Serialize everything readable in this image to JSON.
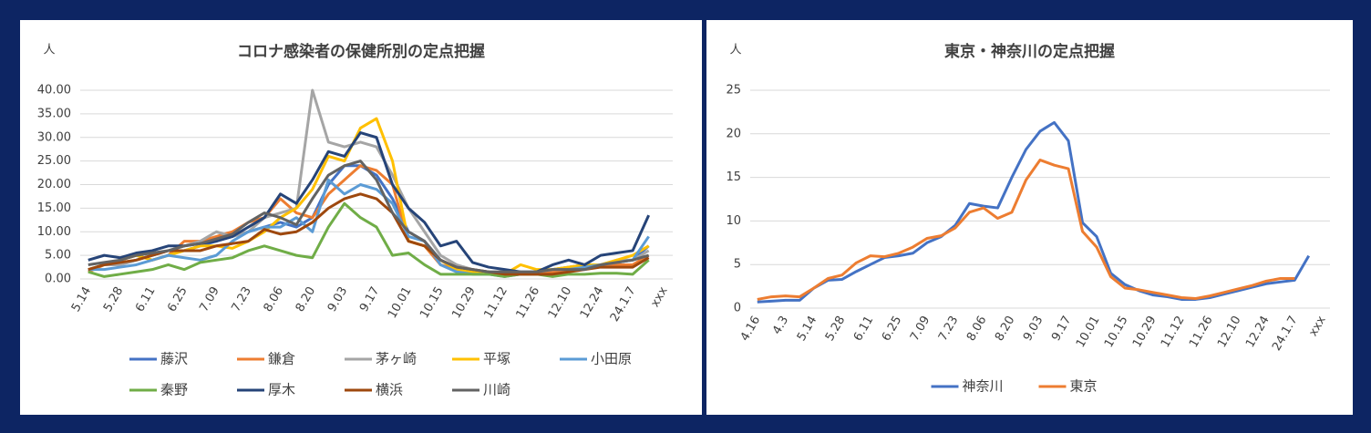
{
  "chart_data": [
    {
      "type": "line",
      "title": "コロナ感染者の保健所別の定点把握",
      "y_label": "人",
      "categories": [
        "5.14",
        null,
        "5.28",
        null,
        "6.11",
        null,
        "6.25",
        null,
        "7.09",
        null,
        "7.23",
        null,
        "8.06",
        null,
        "8.20",
        null,
        "9.03",
        null,
        "9.17",
        null,
        "10.01",
        null,
        "10.15",
        null,
        "10.29",
        null,
        "11.12",
        null,
        "11.26",
        null,
        "12.10",
        null,
        "12.24",
        null,
        "24.1.7",
        null,
        "xxx"
      ],
      "ylim": [
        0,
        40
      ],
      "yticks": [
        {
          "value": 0,
          "label": "0.00"
        },
        {
          "value": 5,
          "label": "5.00"
        },
        {
          "value": 10,
          "label": "10.00"
        },
        {
          "value": 15,
          "label": "15.00"
        },
        {
          "value": 20,
          "label": "20.00"
        },
        {
          "value": 25,
          "label": "25.00"
        },
        {
          "value": 30,
          "label": "30.00"
        },
        {
          "value": 35,
          "label": "35.00"
        },
        {
          "value": 40,
          "label": "40.00"
        }
      ],
      "grid": true,
      "legend": "bottom",
      "series": [
        {
          "name": "藤沢",
          "color": "#4472c4",
          "values": [
            2,
            3,
            3,
            4,
            5,
            6,
            6,
            7,
            8,
            9,
            10,
            11,
            12,
            11,
            13,
            20,
            24,
            24,
            22,
            17,
            10,
            8,
            4,
            2,
            1.5,
            1.2,
            1,
            1,
            1.5,
            2,
            2.5,
            3,
            3,
            3.5,
            4,
            7,
            null
          ]
        },
        {
          "name": "鎌倉",
          "color": "#ed7d31",
          "values": [
            1.5,
            3,
            4,
            5,
            4,
            5,
            8,
            8,
            9,
            10,
            12,
            13,
            17,
            14,
            13,
            18,
            21,
            24,
            23,
            20,
            8,
            7,
            3,
            2,
            1.5,
            1,
            1,
            1,
            1,
            1.5,
            2,
            2.5,
            3,
            3,
            3,
            5,
            null
          ]
        },
        {
          "name": "茅ヶ崎",
          "color": "#a5a5a5",
          "values": [
            2,
            3,
            3,
            4,
            5,
            6,
            7,
            8,
            10,
            9,
            10,
            13,
            14,
            15,
            40,
            29,
            28,
            29,
            28,
            22,
            15,
            10,
            5,
            3,
            2,
            1.5,
            1.5,
            1,
            1.5,
            2,
            2.5,
            3,
            3,
            4,
            4,
            6,
            null
          ]
        },
        {
          "name": "平塚",
          "color": "#ffc000",
          "values": [
            2,
            3,
            4,
            5,
            4,
            5,
            6,
            7,
            7,
            6.5,
            8,
            10,
            13,
            15,
            19,
            26,
            25,
            32,
            34,
            25,
            8,
            7,
            4,
            2,
            1.5,
            1,
            1,
            3,
            2,
            2,
            2.5,
            3,
            3,
            4,
            5,
            7,
            null
          ]
        },
        {
          "name": "小田原",
          "color": "#5b9bd5",
          "values": [
            2,
            2,
            2.5,
            3,
            4,
            5,
            4.5,
            4,
            5,
            8,
            10,
            11,
            11,
            13,
            10,
            21,
            18,
            20,
            19,
            16,
            9,
            8,
            3,
            1.5,
            1,
            1,
            0.5,
            1,
            1.5,
            2,
            2,
            2.5,
            3,
            3.5,
            4,
            9,
            null
          ]
        },
        {
          "name": "秦野",
          "color": "#70ad47",
          "values": [
            1.5,
            0.5,
            1,
            1.5,
            2,
            3,
            2,
            3.5,
            4,
            4.5,
            6,
            7,
            6,
            5,
            4.5,
            11,
            16,
            13,
            11,
            5,
            5.5,
            3,
            1,
            1,
            1,
            1,
            0.5,
            1,
            1,
            0.5,
            1,
            1,
            1.2,
            1.2,
            1,
            4,
            null
          ]
        },
        {
          "name": "厚木",
          "color": "#264478",
          "values": [
            4,
            5,
            4.5,
            5.5,
            6,
            7,
            7,
            7.5,
            8,
            9,
            11,
            13,
            18,
            16,
            21,
            27,
            26,
            31,
            30,
            20,
            15,
            12,
            7,
            8,
            3.5,
            2.5,
            2,
            1.5,
            1.5,
            3,
            4,
            3,
            5,
            5.5,
            6,
            13.5,
            null
          ]
        },
        {
          "name": "横浜",
          "color": "#9e480e",
          "values": [
            2,
            3,
            3.5,
            4,
            5,
            6,
            6,
            6,
            7,
            7.5,
            8,
            10.5,
            9.5,
            10,
            12,
            15,
            17,
            18,
            17,
            14,
            8,
            7,
            4,
            2.5,
            2,
            1.5,
            1,
            1,
            1,
            1,
            1.5,
            2,
            2.5,
            2.5,
            2.5,
            4.5,
            null
          ]
        },
        {
          "name": "川崎",
          "color": "#636363",
          "values": [
            3,
            3.5,
            4,
            5,
            5.5,
            6,
            7,
            7.5,
            8.5,
            9.5,
            12,
            14,
            13,
            11.5,
            17,
            22,
            24,
            25,
            21,
            14,
            10,
            8,
            4,
            2.5,
            2,
            1.5,
            1.5,
            1.5,
            1.5,
            2,
            2,
            2,
            3,
            3.5,
            4,
            5,
            null
          ]
        }
      ]
    },
    {
      "type": "line",
      "title": "東京・神奈川の定点把握",
      "y_label": "人",
      "categories": [
        "4.16",
        null,
        "4.3",
        null,
        "5.14",
        null,
        "5.28",
        null,
        "6.11",
        null,
        "6.25",
        null,
        "7.09",
        null,
        "7.23",
        null,
        "8.06",
        null,
        "8.20",
        null,
        "9.03",
        null,
        "9.17",
        null,
        "10.01",
        null,
        "10.15",
        null,
        "10.29",
        null,
        "11.12",
        null,
        "11.26",
        null,
        "12.10",
        null,
        "12.24",
        null,
        "24.1.7",
        null,
        "xxx"
      ],
      "ylim": [
        0,
        25
      ],
      "yticks": [
        0,
        5,
        10,
        15,
        20,
        25
      ],
      "grid": true,
      "legend": "bottom",
      "series": [
        {
          "name": "神奈川",
          "color": "#4472c4",
          "values": [
            0.7,
            0.8,
            0.9,
            0.9,
            2.3,
            3.2,
            3.3,
            4.2,
            5,
            5.8,
            6,
            6.3,
            7.5,
            8.2,
            9.5,
            12,
            11.7,
            11.5,
            15,
            18.2,
            20.3,
            21.3,
            19.2,
            9.8,
            8.2,
            4,
            2.7,
            2,
            1.5,
            1.3,
            1,
            1,
            1.2,
            1.6,
            2,
            2.4,
            2.8,
            3,
            3.2,
            6,
            null
          ]
        },
        {
          "name": "東京",
          "color": "#ed7d31",
          "values": [
            1,
            1.3,
            1.4,
            1.3,
            2.3,
            3.4,
            3.8,
            5.2,
            6,
            5.9,
            6.3,
            7,
            8,
            8.3,
            9.2,
            11,
            11.5,
            10.3,
            11,
            14.7,
            17,
            16.4,
            16,
            8.8,
            7,
            3.6,
            2.3,
            2.1,
            1.8,
            1.5,
            1.2,
            1.1,
            1.4,
            1.8,
            2.2,
            2.6,
            3.1,
            3.4,
            3.4,
            null,
            null
          ]
        }
      ]
    }
  ]
}
